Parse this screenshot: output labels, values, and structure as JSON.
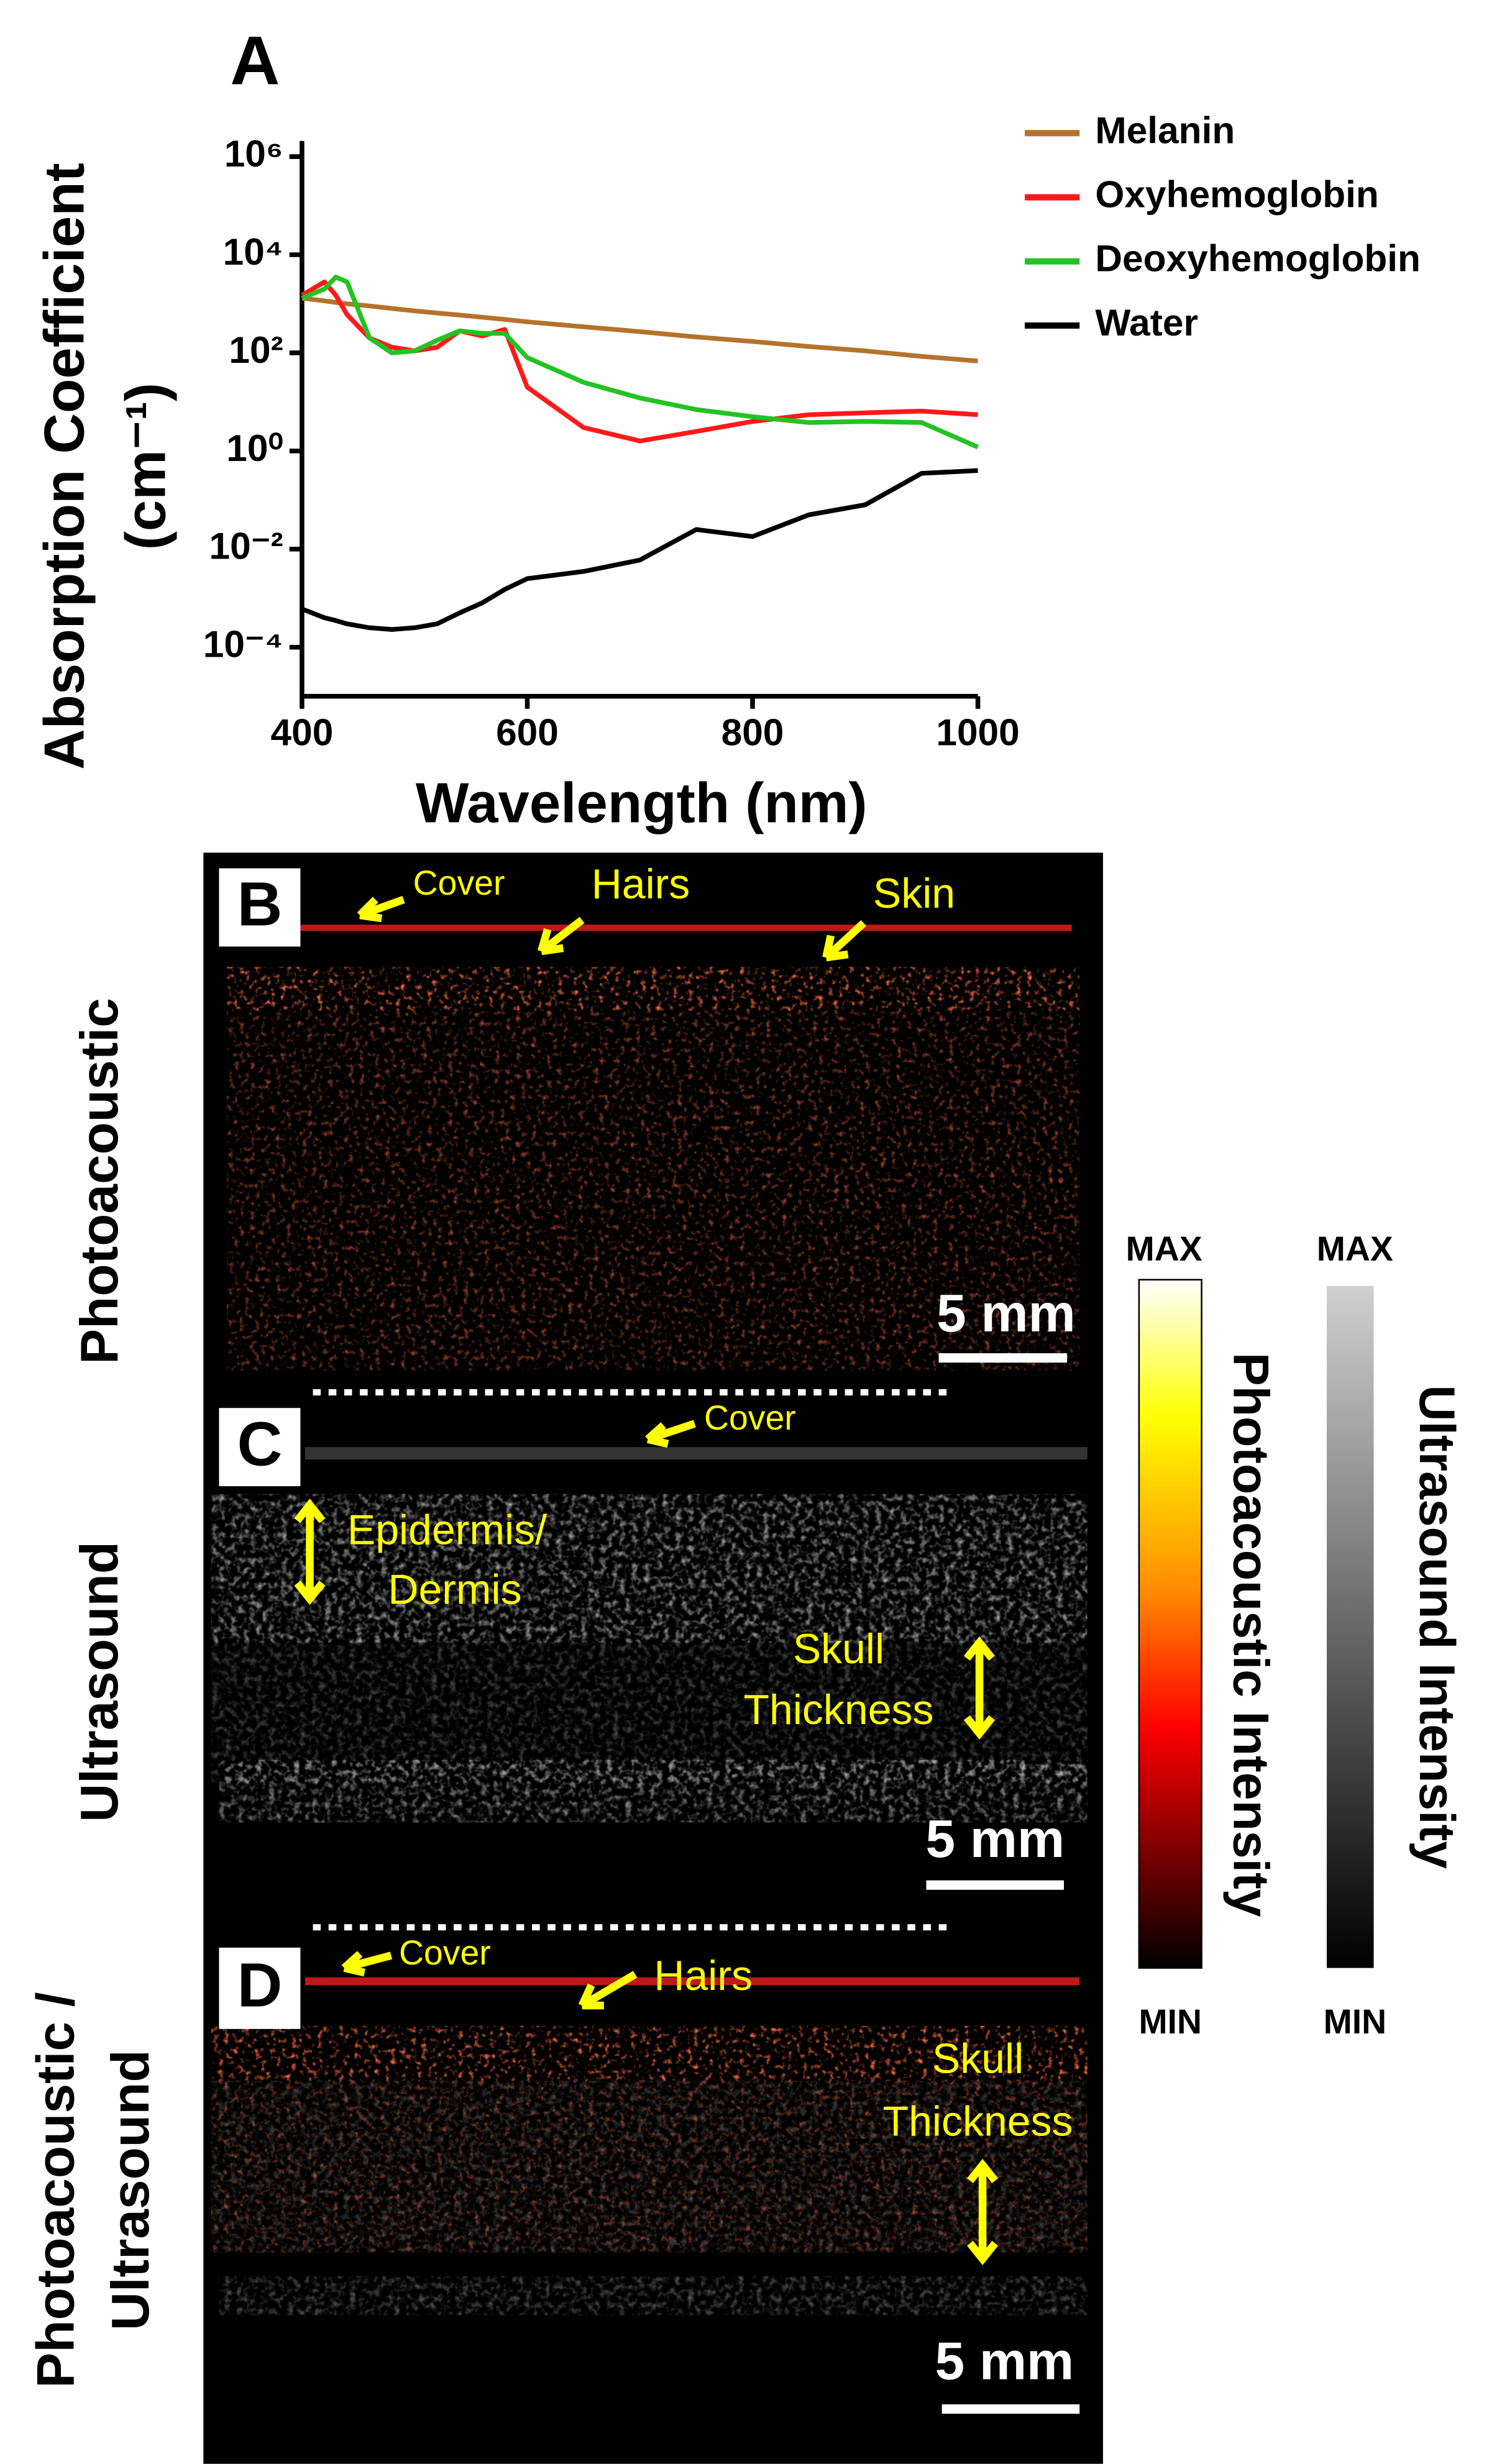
{
  "chart_data": {
    "type": "line",
    "panel_label": "A",
    "x_label": "Wavelength (nm)",
    "y_label": [
      "Absorption Coefficient",
      "(cm⁻¹)"
    ],
    "x": [
      400,
      420,
      430,
      440,
      460,
      480,
      500,
      520,
      540,
      560,
      580,
      600,
      650,
      700,
      750,
      800,
      850,
      900,
      950,
      1000
    ],
    "series": [
      {
        "name": "Melanin",
        "color": "#b5732a",
        "values": [
          1300,
          1150,
          1070,
          1000,
          900,
          800,
          720,
          650,
          590,
          530,
          480,
          430,
          340,
          270,
          210,
          170,
          135,
          110,
          85,
          68
        ]
      },
      {
        "name": "Oxyhemoglobin",
        "color": "#ff1a1a",
        "values": [
          1500,
          2800,
          1500,
          600,
          200,
          130,
          110,
          130,
          280,
          220,
          300,
          20,
          3,
          1.6,
          2.5,
          4,
          5.5,
          6,
          6.5,
          5.5
        ]
      },
      {
        "name": "Deoxyhemoglobin",
        "color": "#22c322",
        "values": [
          1300,
          2000,
          3500,
          2800,
          200,
          100,
          110,
          180,
          280,
          250,
          250,
          80,
          25,
          12,
          7,
          5,
          3.8,
          4,
          3.8,
          1.2
        ]
      },
      {
        "name": "Water",
        "color": "#000000",
        "values": [
          0.0006,
          0.0004,
          0.00035,
          0.0003,
          0.00025,
          0.00023,
          0.00025,
          0.0003,
          0.0005,
          0.0008,
          0.0015,
          0.0025,
          0.0035,
          0.006,
          0.025,
          0.018,
          0.05,
          0.08,
          0.35,
          0.4
        ]
      }
    ],
    "xlim": [
      400,
      1000
    ],
    "xticks": [
      400,
      600,
      800,
      1000
    ],
    "ylim": [
      1e-05,
      1000000
    ],
    "log_y": true,
    "yticks": [
      {
        "value": 0.0001,
        "label": "10⁻⁴"
      },
      {
        "value": 0.01,
        "label": "10⁻²"
      },
      {
        "value": 1,
        "label": "10⁰"
      },
      {
        "value": 100,
        "label": "10²"
      },
      {
        "value": 10000,
        "label": "10⁴"
      },
      {
        "value": 1000000,
        "label": "10⁶"
      }
    ],
    "legend": "top-right"
  },
  "panels": {
    "B": {
      "label": "B",
      "side_label": [
        "Photoacoustic"
      ],
      "annotations": {
        "cover": "Cover",
        "hairs": "Hairs",
        "skin": "Skin"
      },
      "scale_bar": "5 mm"
    },
    "C": {
      "label": "C",
      "side_label": [
        "Ultrasound"
      ],
      "annotations": {
        "cover": "Cover",
        "layer": [
          "Epidermis/",
          "Dermis"
        ],
        "skull": [
          "Skull",
          "Thickness"
        ]
      },
      "scale_bar": "5 mm"
    },
    "D": {
      "label": "D",
      "side_label": [
        "Photoacoustic /",
        "Ultrasound"
      ],
      "annotations": {
        "cover": "Cover",
        "hairs": "Hairs",
        "skull": [
          "Skull",
          "Thickness"
        ]
      },
      "scale_bar": "5 mm"
    }
  },
  "colorbars": {
    "photoacoustic": {
      "title": "Photoacoustic Intensity",
      "max": "MAX",
      "min": "MIN"
    },
    "ultrasound": {
      "title": "Ultrasound Intensity",
      "max": "MAX",
      "min": "MIN"
    }
  }
}
